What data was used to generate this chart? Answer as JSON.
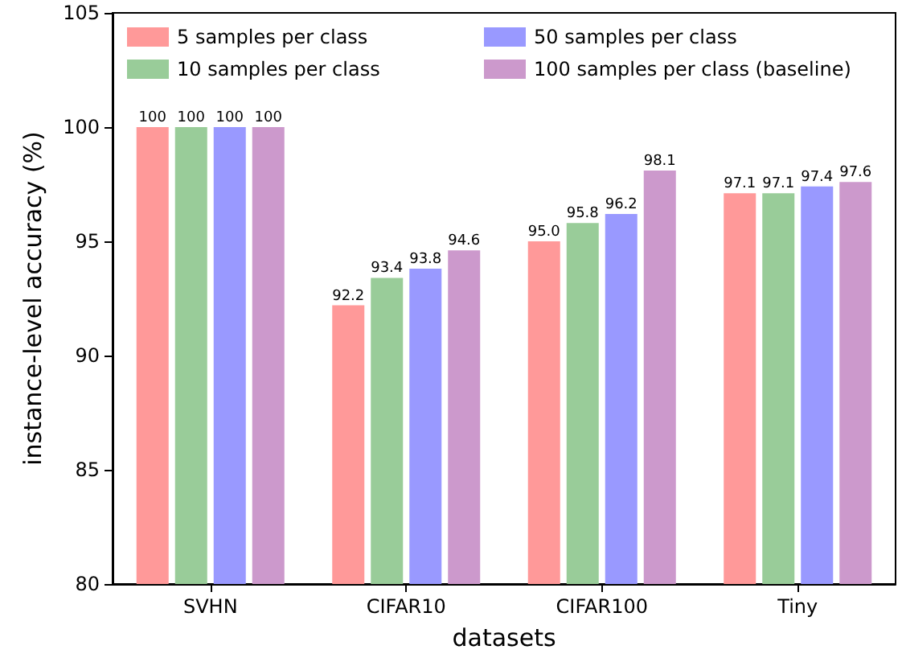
{
  "chart_data": {
    "type": "bar",
    "xlabel": "datasets",
    "ylabel": "instance-level accuracy (%)",
    "categories": [
      "SVHN",
      "CIFAR10",
      "CIFAR100",
      "Tiny"
    ],
    "series": [
      {
        "name": "5 samples per class",
        "color": "#ff9999",
        "values": [
          100,
          92.2,
          95.0,
          97.1
        ],
        "value_labels": [
          "100",
          "92.2",
          "95.0",
          "97.1"
        ]
      },
      {
        "name": "10 samples per class",
        "color": "#99cc99",
        "values": [
          100,
          93.4,
          95.8,
          97.1
        ],
        "value_labels": [
          "100",
          "93.4",
          "95.8",
          "97.1"
        ]
      },
      {
        "name": "50 samples per class",
        "color": "#9999ff",
        "values": [
          100,
          93.8,
          96.2,
          97.4
        ],
        "value_labels": [
          "100",
          "93.8",
          "96.2",
          "97.4"
        ]
      },
      {
        "name": "100 samples per class (baseline)",
        "color": "#cc99cc",
        "values": [
          100,
          94.6,
          98.1,
          97.6
        ],
        "value_labels": [
          "100",
          "94.6",
          "98.1",
          "97.6"
        ]
      }
    ],
    "ylim": [
      80,
      105
    ],
    "yticks": [
      80,
      85,
      90,
      95,
      100,
      105
    ],
    "grid": false,
    "legend": "top left"
  }
}
